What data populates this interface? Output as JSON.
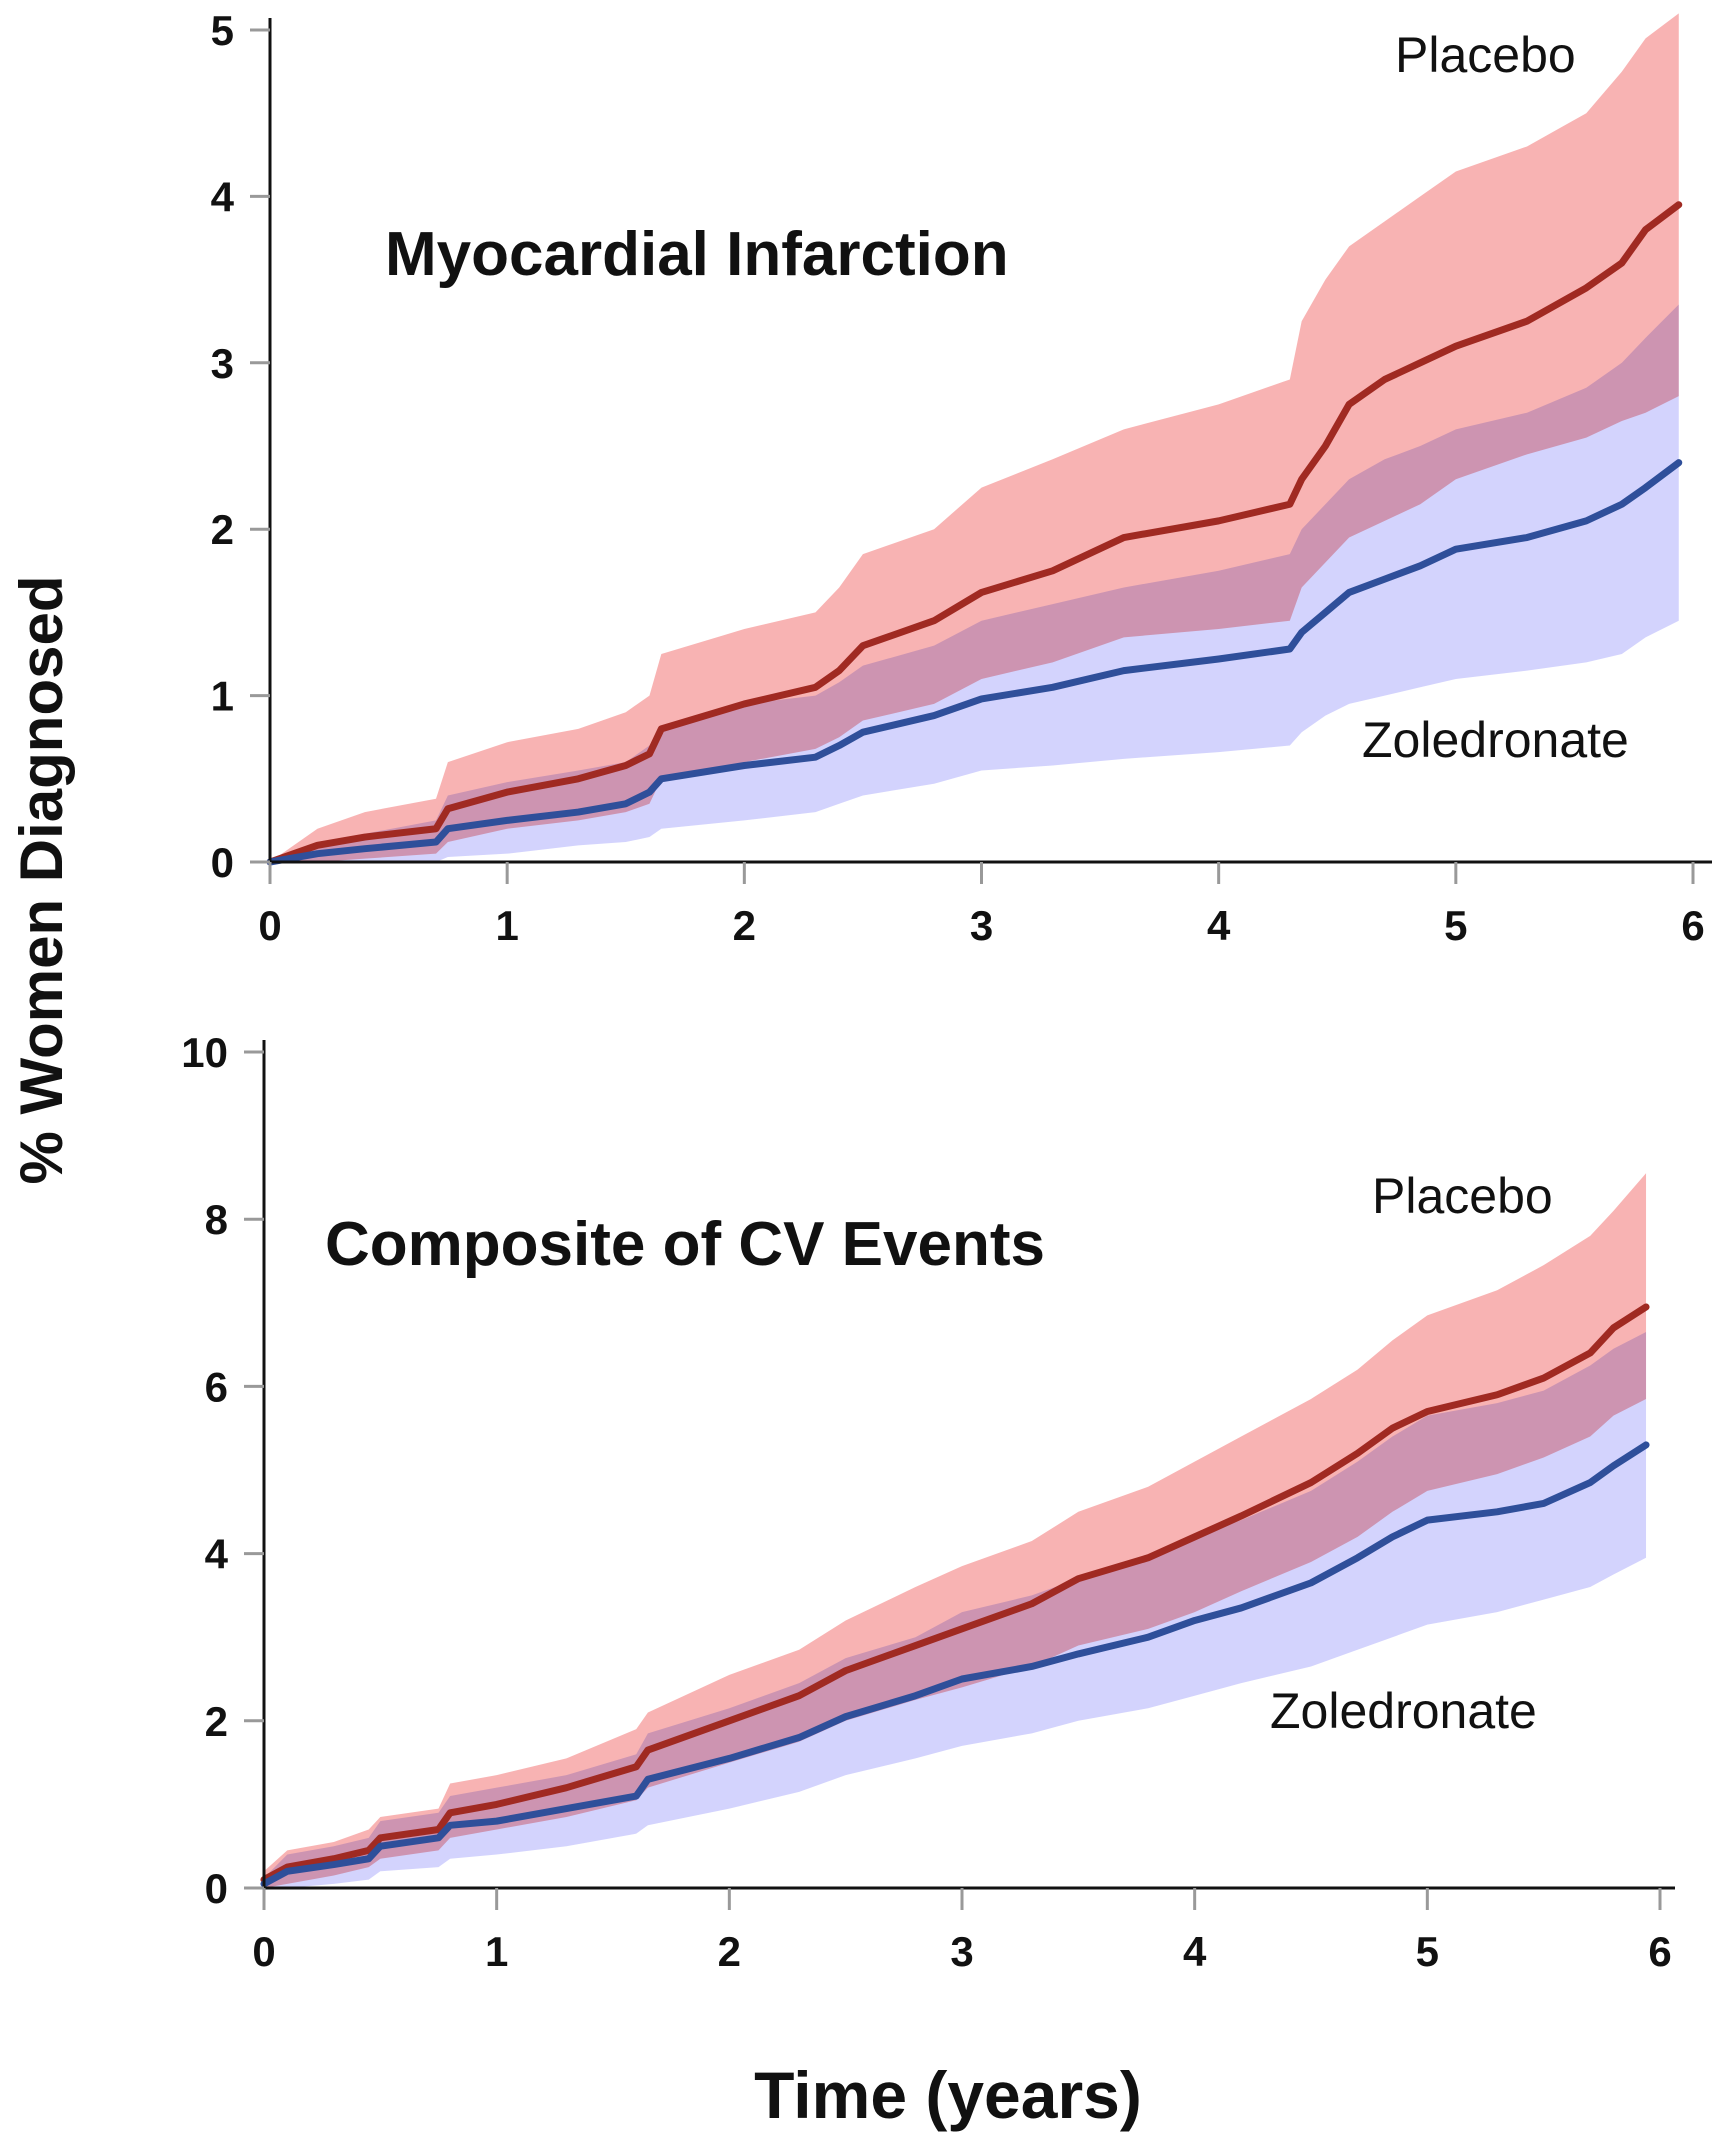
{
  "figure": {
    "ylabel": "% Women Diagnosed",
    "xlabel": "Time (years)"
  },
  "chart_data": [
    {
      "type": "line",
      "title": "Myocardial Infarction",
      "xlim": [
        0,
        6
      ],
      "ylim": [
        0,
        5
      ],
      "xticks": [
        "0",
        "1",
        "2",
        "3",
        "4",
        "5",
        "6"
      ],
      "yticks": [
        "0",
        "1",
        "2",
        "3",
        "4",
        "5"
      ],
      "grid": false,
      "series": [
        {
          "name": "Placebo",
          "color": "#a02a22",
          "band_color": "#f59a9a",
          "x": [
            0,
            0.2,
            0.4,
            0.7,
            0.75,
            1.0,
            1.3,
            1.5,
            1.6,
            1.65,
            2.0,
            2.3,
            2.4,
            2.5,
            2.8,
            3.0,
            3.3,
            3.6,
            4.0,
            4.3,
            4.35,
            4.45,
            4.55,
            4.7,
            4.85,
            5.0,
            5.3,
            5.55,
            5.7,
            5.8,
            5.94
          ],
          "y": [
            0,
            0.1,
            0.15,
            0.2,
            0.32,
            0.42,
            0.5,
            0.58,
            0.65,
            0.8,
            0.95,
            1.05,
            1.15,
            1.3,
            1.45,
            1.62,
            1.75,
            1.95,
            2.05,
            2.15,
            2.3,
            2.5,
            2.75,
            2.9,
            3.0,
            3.1,
            3.25,
            3.45,
            3.6,
            3.8,
            3.95
          ],
          "lower": [
            0,
            0,
            0.02,
            0.05,
            0.12,
            0.2,
            0.25,
            0.3,
            0.35,
            0.5,
            0.6,
            0.68,
            0.75,
            0.85,
            0.95,
            1.1,
            1.2,
            1.35,
            1.4,
            1.45,
            1.65,
            1.8,
            1.95,
            2.05,
            2.15,
            2.3,
            2.45,
            2.55,
            2.65,
            2.7,
            2.8
          ],
          "upper": [
            0,
            0.2,
            0.3,
            0.38,
            0.6,
            0.72,
            0.8,
            0.9,
            1.0,
            1.25,
            1.4,
            1.5,
            1.65,
            1.85,
            2.0,
            2.25,
            2.42,
            2.6,
            2.75,
            2.9,
            3.25,
            3.5,
            3.7,
            3.85,
            4.0,
            4.15,
            4.3,
            4.5,
            4.75,
            4.95,
            5.1
          ]
        },
        {
          "name": "Zoledronate",
          "color": "#2f4f9a",
          "band_color": "#b8b8fb",
          "x": [
            0,
            0.2,
            0.4,
            0.7,
            0.75,
            1.0,
            1.3,
            1.5,
            1.6,
            1.65,
            2.0,
            2.3,
            2.4,
            2.5,
            2.8,
            3.0,
            3.3,
            3.6,
            4.0,
            4.3,
            4.35,
            4.45,
            4.55,
            4.7,
            4.85,
            5.0,
            5.3,
            5.55,
            5.7,
            5.8,
            5.94
          ],
          "y": [
            0,
            0.05,
            0.08,
            0.12,
            0.2,
            0.25,
            0.3,
            0.35,
            0.42,
            0.5,
            0.58,
            0.63,
            0.7,
            0.78,
            0.88,
            0.98,
            1.05,
            1.15,
            1.22,
            1.28,
            1.38,
            1.5,
            1.62,
            1.7,
            1.78,
            1.88,
            1.95,
            2.05,
            2.15,
            2.25,
            2.4
          ],
          "lower": [
            0,
            0,
            0,
            0,
            0.03,
            0.05,
            0.1,
            0.12,
            0.15,
            0.2,
            0.25,
            0.3,
            0.35,
            0.4,
            0.47,
            0.55,
            0.58,
            0.62,
            0.66,
            0.7,
            0.78,
            0.88,
            0.95,
            1.0,
            1.05,
            1.1,
            1.15,
            1.2,
            1.25,
            1.35,
            1.45
          ],
          "upper": [
            0,
            0.12,
            0.17,
            0.25,
            0.4,
            0.48,
            0.55,
            0.6,
            0.7,
            0.82,
            0.95,
            1.0,
            1.08,
            1.18,
            1.3,
            1.45,
            1.55,
            1.65,
            1.75,
            1.85,
            2.0,
            2.15,
            2.3,
            2.42,
            2.5,
            2.6,
            2.7,
            2.85,
            3.0,
            3.15,
            3.35
          ]
        }
      ]
    },
    {
      "type": "line",
      "title": "Composite of CV Events",
      "xlim": [
        0,
        6
      ],
      "ylim": [
        0,
        10
      ],
      "xticks": [
        "0",
        "1",
        "2",
        "3",
        "4",
        "5",
        "6"
      ],
      "yticks": [
        "0",
        "2",
        "4",
        "6",
        "8",
        "10"
      ],
      "grid": false,
      "series": [
        {
          "name": "Placebo",
          "color": "#a02a22",
          "band_color": "#f59a9a",
          "x": [
            0,
            0.1,
            0.3,
            0.45,
            0.5,
            0.75,
            0.8,
            1.0,
            1.3,
            1.6,
            1.65,
            2.0,
            2.3,
            2.5,
            2.8,
            3.0,
            3.3,
            3.5,
            3.8,
            4.0,
            4.2,
            4.5,
            4.7,
            4.85,
            5.0,
            5.3,
            5.5,
            5.7,
            5.8,
            5.94
          ],
          "y": [
            0.1,
            0.25,
            0.35,
            0.45,
            0.6,
            0.7,
            0.9,
            1.0,
            1.2,
            1.45,
            1.65,
            2.0,
            2.3,
            2.6,
            2.9,
            3.1,
            3.4,
            3.7,
            3.95,
            4.2,
            4.45,
            4.85,
            5.2,
            5.5,
            5.7,
            5.9,
            6.1,
            6.4,
            6.7,
            6.95
          ],
          "lower": [
            0,
            0.05,
            0.15,
            0.25,
            0.35,
            0.45,
            0.6,
            0.7,
            0.85,
            1.05,
            1.2,
            1.5,
            1.75,
            2.0,
            2.25,
            2.4,
            2.65,
            2.9,
            3.1,
            3.3,
            3.55,
            3.9,
            4.2,
            4.5,
            4.75,
            4.95,
            5.15,
            5.4,
            5.65,
            5.85
          ],
          "upper": [
            0.2,
            0.45,
            0.55,
            0.7,
            0.85,
            0.95,
            1.25,
            1.35,
            1.55,
            1.9,
            2.1,
            2.55,
            2.85,
            3.2,
            3.6,
            3.85,
            4.15,
            4.5,
            4.8,
            5.1,
            5.4,
            5.85,
            6.2,
            6.55,
            6.85,
            7.15,
            7.45,
            7.8,
            8.1,
            8.55
          ]
        },
        {
          "name": "Zoledronate",
          "color": "#2f4f9a",
          "band_color": "#b8b8fb",
          "x": [
            0,
            0.1,
            0.3,
            0.45,
            0.5,
            0.75,
            0.8,
            1.0,
            1.3,
            1.6,
            1.65,
            2.0,
            2.3,
            2.5,
            2.8,
            3.0,
            3.3,
            3.5,
            3.8,
            4.0,
            4.2,
            4.5,
            4.7,
            4.85,
            5.0,
            5.3,
            5.5,
            5.7,
            5.8,
            5.94
          ],
          "y": [
            0.05,
            0.2,
            0.28,
            0.35,
            0.5,
            0.6,
            0.75,
            0.8,
            0.95,
            1.1,
            1.3,
            1.55,
            1.8,
            2.05,
            2.3,
            2.5,
            2.65,
            2.8,
            3.0,
            3.2,
            3.35,
            3.65,
            3.95,
            4.2,
            4.4,
            4.5,
            4.6,
            4.85,
            5.05,
            5.3
          ],
          "lower": [
            0,
            0,
            0.05,
            0.1,
            0.2,
            0.25,
            0.35,
            0.4,
            0.5,
            0.65,
            0.75,
            0.95,
            1.15,
            1.35,
            1.55,
            1.7,
            1.85,
            2.0,
            2.15,
            2.3,
            2.45,
            2.65,
            2.85,
            3.0,
            3.15,
            3.3,
            3.45,
            3.6,
            3.75,
            3.95
          ],
          "upper": [
            0.12,
            0.4,
            0.5,
            0.6,
            0.8,
            0.9,
            1.1,
            1.2,
            1.35,
            1.6,
            1.85,
            2.15,
            2.45,
            2.75,
            3.0,
            3.3,
            3.5,
            3.7,
            3.95,
            4.2,
            4.4,
            4.75,
            5.1,
            5.4,
            5.65,
            5.8,
            5.95,
            6.25,
            6.45,
            6.65
          ]
        }
      ]
    }
  ]
}
